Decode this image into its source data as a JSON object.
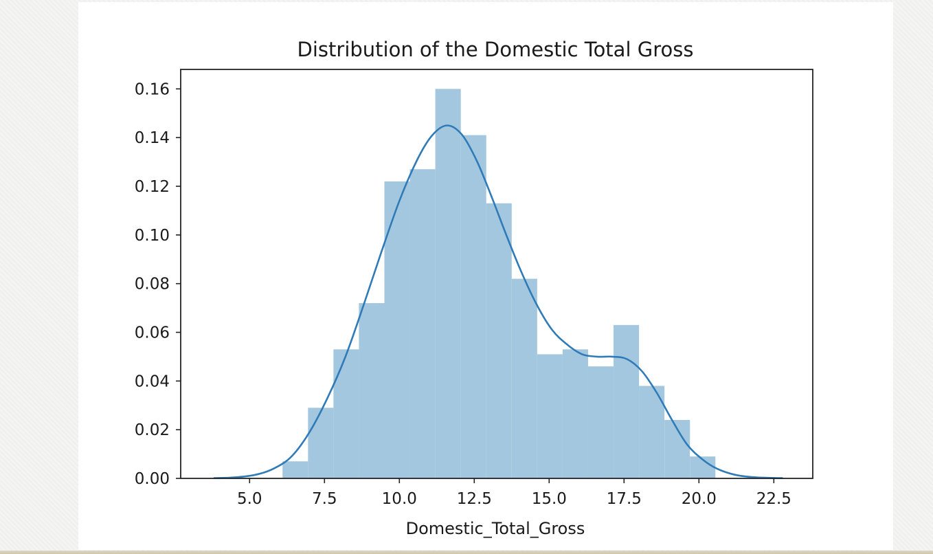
{
  "chart_data": {
    "type": "histogram",
    "title": "Distribution of the Domestic Total Gross",
    "xlabel": "Domestic_Total_Gross",
    "ylabel": "",
    "xlim": [
      2.7,
      23.8
    ],
    "ylim": [
      0,
      0.168
    ],
    "x_ticks": [
      5.0,
      7.5,
      10.0,
      12.5,
      15.0,
      17.5,
      20.0,
      22.5
    ],
    "x_tick_labels": [
      "5.0",
      "7.5",
      "10.0",
      "12.5",
      "15.0",
      "17.5",
      "20.0",
      "22.5"
    ],
    "y_ticks": [
      0,
      0.02,
      0.04,
      0.06,
      0.08,
      0.1,
      0.12,
      0.14,
      0.16
    ],
    "y_tick_labels": [
      "0.00",
      "0.02",
      "0.04",
      "0.06",
      "0.08",
      "0.10",
      "0.12",
      "0.14",
      "0.16"
    ],
    "grid": false,
    "bins": {
      "start": 6.1,
      "width": 0.85,
      "values": [
        0.007,
        0.029,
        0.053,
        0.072,
        0.122,
        0.127,
        0.16,
        0.141,
        0.113,
        0.082,
        0.051,
        0.053,
        0.046,
        0.063,
        0.038,
        0.024,
        0.009
      ]
    },
    "kde": {
      "x": [
        3.8,
        4.5,
        5.2,
        5.8,
        6.4,
        7.0,
        7.6,
        8.2,
        8.8,
        9.4,
        10.0,
        10.6,
        11.1,
        11.6,
        12.1,
        12.6,
        13.1,
        13.6,
        14.1,
        14.6,
        15.1,
        15.6,
        16.1,
        16.6,
        17.1,
        17.6,
        18.1,
        18.6,
        19.1,
        19.6,
        20.1,
        20.6,
        21.2,
        21.8,
        22.4,
        22.8
      ],
      "y": [
        0.0001,
        0.0004,
        0.0015,
        0.004,
        0.009,
        0.019,
        0.033,
        0.05,
        0.071,
        0.093,
        0.114,
        0.131,
        0.141,
        0.145,
        0.141,
        0.13,
        0.115,
        0.099,
        0.084,
        0.071,
        0.061,
        0.055,
        0.051,
        0.05,
        0.05,
        0.049,
        0.044,
        0.035,
        0.024,
        0.014,
        0.008,
        0.004,
        0.0015,
        0.0005,
        0.0002,
        0.0001
      ]
    },
    "colors": {
      "bars": "#a3c7df",
      "kde": "#2f7bb7",
      "axes": "#222222"
    }
  }
}
